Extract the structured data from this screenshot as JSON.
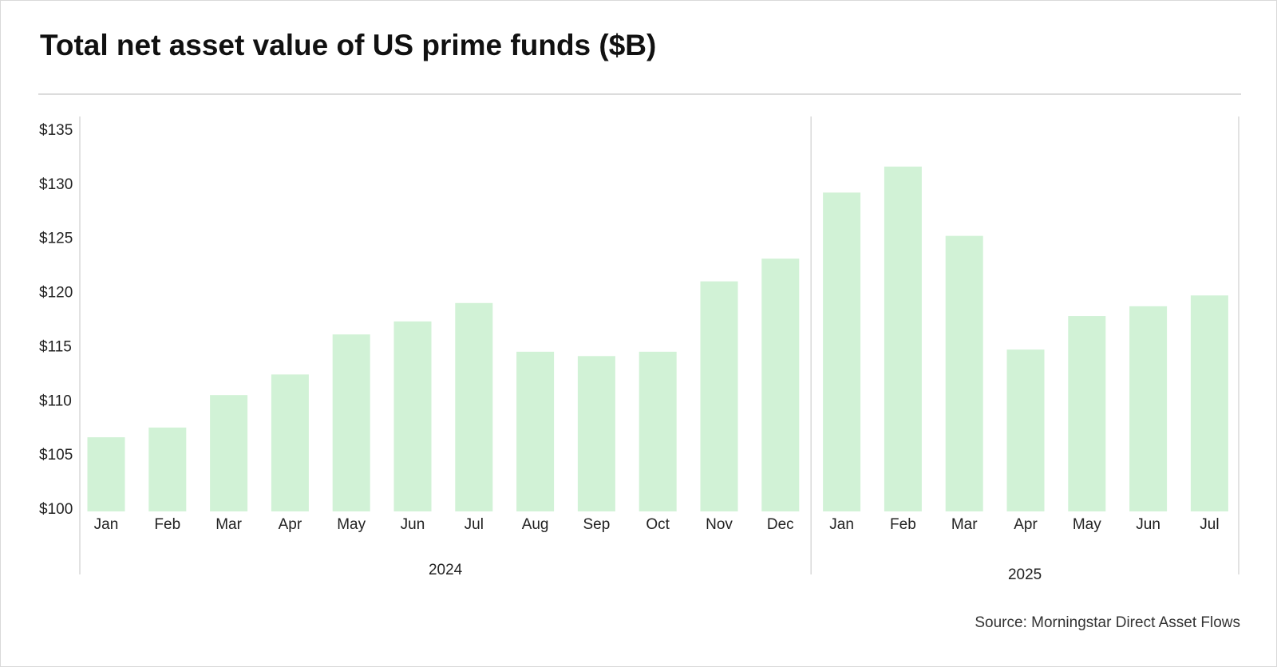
{
  "title": "Total net asset value of US prime funds ($B)",
  "source": "Source: Morningstar Direct Asset Flows",
  "colors": {
    "bar": "#d1f2d6",
    "text": "#222222",
    "divider": "#d9d9d9"
  },
  "chart_data": {
    "type": "bar",
    "title": "Total net asset value of US prime funds ($B)",
    "xlabel": "",
    "ylabel": "",
    "ylim": [
      100,
      135
    ],
    "yticks": [
      100,
      105,
      110,
      115,
      120,
      125,
      130,
      135
    ],
    "ytick_labels": [
      "$100",
      "$105",
      "$110",
      "$115",
      "$120",
      "$125",
      "$130",
      "$135"
    ],
    "grid": false,
    "legend": "none",
    "categories": [
      "Jan",
      "Feb",
      "Mar",
      "Apr",
      "May",
      "Jun",
      "Jul",
      "Aug",
      "Sep",
      "Oct",
      "Nov",
      "Dec",
      "Jan",
      "Feb",
      "Mar",
      "Apr",
      "May",
      "Jun",
      "Jul"
    ],
    "values": [
      106.7,
      107.6,
      110.6,
      112.5,
      116.2,
      117.4,
      119.1,
      114.6,
      114.2,
      114.6,
      121.1,
      123.2,
      129.3,
      131.7,
      125.3,
      114.8,
      117.9,
      118.8,
      119.8
    ],
    "groups": [
      {
        "label": "2024",
        "start": 0,
        "end": 11
      },
      {
        "label": "2025",
        "start": 12,
        "end": 18
      }
    ]
  }
}
